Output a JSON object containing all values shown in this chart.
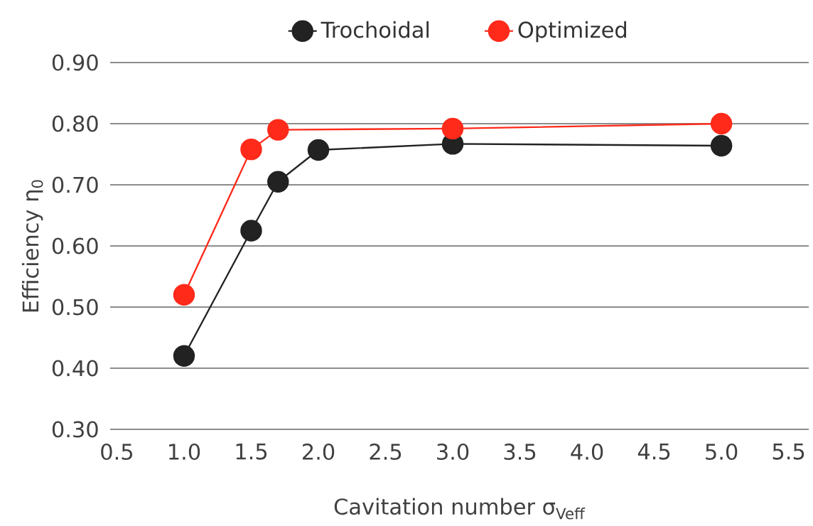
{
  "chart_data": {
    "type": "line",
    "xlabel": "Cavitation number σ$_{Veff}$",
    "ylabel": "Efficiency η$_{0}$",
    "xlim": [
      0.45,
      5.65
    ],
    "ylim": [
      0.3,
      0.9
    ],
    "xticks": [
      {
        "value": 0.5,
        "label": "0.5"
      },
      {
        "value": 1.0,
        "label": "1.0"
      },
      {
        "value": 1.5,
        "label": "1.5"
      },
      {
        "value": 2.0,
        "label": "2.0"
      },
      {
        "value": 2.5,
        "label": "2.5"
      },
      {
        "value": 3.0,
        "label": "3.0"
      },
      {
        "value": 3.5,
        "label": "3.5"
      },
      {
        "value": 4.0,
        "label": "4.0"
      },
      {
        "value": 4.5,
        "label": "4.5"
      },
      {
        "value": 5.0,
        "label": "5.0"
      },
      {
        "value": 5.5,
        "label": "5.5"
      }
    ],
    "yticks": [
      {
        "value": 0.3,
        "label": "0.30"
      },
      {
        "value": 0.4,
        "label": "0.40"
      },
      {
        "value": 0.5,
        "label": "0.50"
      },
      {
        "value": 0.6,
        "label": "0.60"
      },
      {
        "value": 0.7,
        "label": "0.70"
      },
      {
        "value": 0.8,
        "label": "0.80"
      },
      {
        "value": 0.9,
        "label": "0.90"
      }
    ],
    "grid": "y",
    "legend": "top",
    "marker": "circle",
    "series": [
      {
        "name": "Trochoidal",
        "color": "#222222",
        "x": [
          1.0,
          1.5,
          1.7,
          2.0,
          3.0,
          5.0
        ],
        "values": [
          0.42,
          0.625,
          0.705,
          0.757,
          0.767,
          0.764
        ]
      },
      {
        "name": "Optimized",
        "color": "#ff2a1a",
        "x": [
          1.0,
          1.5,
          1.7,
          3.0,
          5.0
        ],
        "values": [
          0.52,
          0.758,
          0.79,
          0.792,
          0.8
        ]
      }
    ]
  }
}
